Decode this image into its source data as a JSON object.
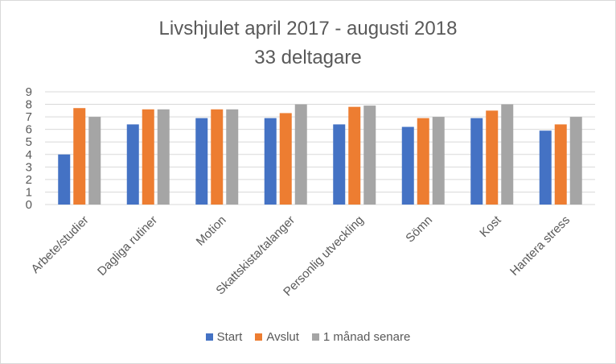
{
  "chart_data": {
    "type": "bar",
    "title": "Livshjulet april 2017 - augusti 2018",
    "subtitle": "33 deltagare",
    "categories": [
      "Arbete/studier",
      "Dagliga rutiner",
      "Motion",
      "Skattskista/talanger",
      "Personlig utveckling",
      "Sömn",
      "Kost",
      "Hantera stress"
    ],
    "series": [
      {
        "name": "Start",
        "color": "#4472c4",
        "values": [
          4.0,
          6.4,
          6.9,
          6.9,
          6.4,
          6.2,
          6.9,
          5.9
        ]
      },
      {
        "name": "Avslut",
        "color": "#ed7d31",
        "values": [
          7.7,
          7.6,
          7.6,
          7.3,
          7.8,
          6.9,
          7.5,
          6.4
        ]
      },
      {
        "name": "1 månad senare",
        "color": "#a5a5a5",
        "values": [
          7.0,
          7.6,
          7.6,
          8.0,
          7.9,
          7.0,
          8.0,
          7.0
        ]
      }
    ],
    "ylim": [
      0,
      9
    ],
    "yticks": [
      "0",
      "1",
      "2",
      "3",
      "4",
      "5",
      "6",
      "7",
      "8",
      "9"
    ],
    "grid": true,
    "legend_position": "bottom"
  }
}
